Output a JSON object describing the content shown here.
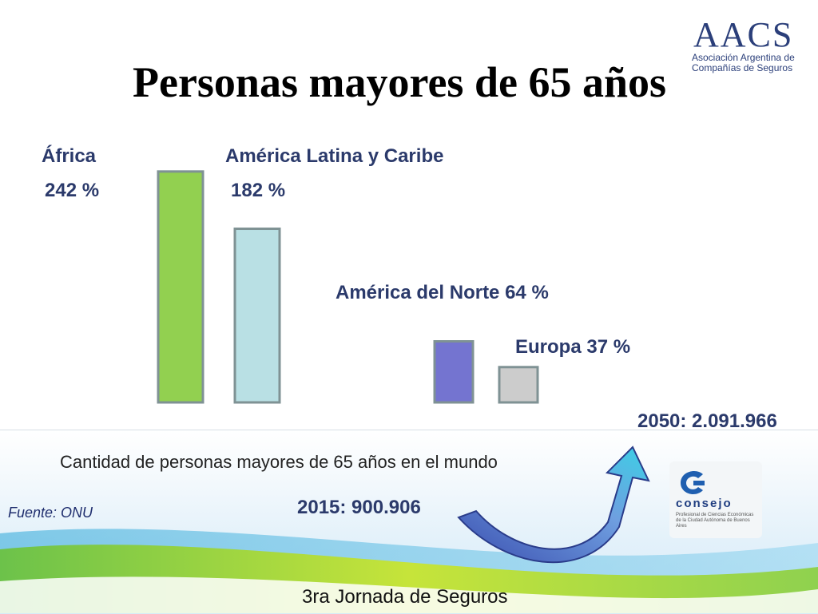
{
  "slide": {
    "title": "Personas mayores de 65 años",
    "logo": {
      "acronym": "AACS",
      "line1": "Asociación Argentina de",
      "line2": "Compañías de Seguros"
    },
    "caption": "Cantidad de personas mayores de 65 años en el mundo",
    "source": "Fuente: ONU",
    "value_2015": "2015:  900.906",
    "value_2050": "2050:  2.091.966",
    "footer": "3ra Jornada de Seguros",
    "consejo": {
      "word": "consejo",
      "sub": "Profesional de Ciencias Económicas de la Ciudad Autónoma de Buenos Aires"
    }
  },
  "chart_data": {
    "type": "bar",
    "categories": [
      "África",
      "América Latina y Caribe",
      "América del Norte",
      "Europa"
    ],
    "values": [
      242,
      182,
      64,
      37
    ],
    "labels": {
      "africa_name": "África",
      "africa_value": "242 %",
      "latam_name": "América Latina y Caribe",
      "latam_value": "182 %",
      "norte": "América del Norte 64 %",
      "europa": "Europa 37 %"
    },
    "colors": [
      "#92d050",
      "#b9e0e4",
      "#7474d0",
      "#cccccc"
    ],
    "bar_border": "#7f9294"
  }
}
